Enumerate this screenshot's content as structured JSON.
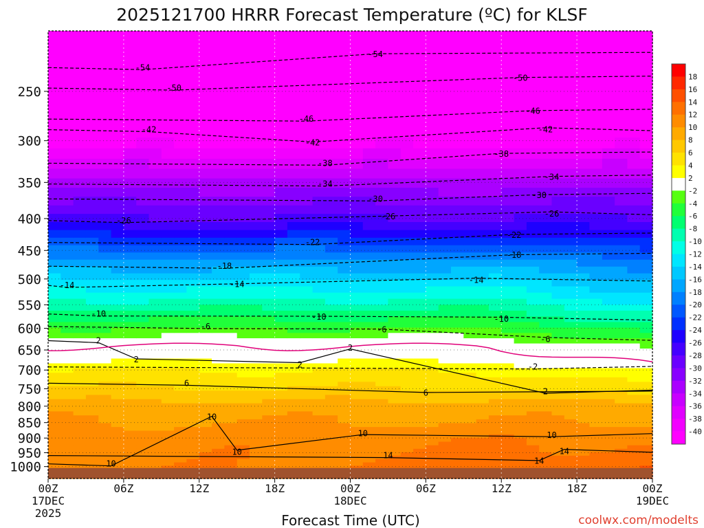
{
  "chart_data": {
    "type": "heatmap",
    "title": "2025121700 HRRR Forecast Temperature (ºC) for KLSF",
    "xlabel": "Forecast Time (UTC)",
    "ylabel": "",
    "credit": "coolwx.com/modelts",
    "x_range_hours": [
      0,
      48
    ],
    "x_ticks": [
      {
        "hour": 0,
        "line1": "00Z",
        "line2": "17DEC",
        "line3": "2025"
      },
      {
        "hour": 6,
        "line1": "06Z",
        "line2": "",
        "line3": ""
      },
      {
        "hour": 12,
        "line1": "12Z",
        "line2": "",
        "line3": ""
      },
      {
        "hour": 18,
        "line1": "18Z",
        "line2": "",
        "line3": ""
      },
      {
        "hour": 24,
        "line1": "00Z",
        "line2": "18DEC",
        "line3": ""
      },
      {
        "hour": 30,
        "line1": "06Z",
        "line2": "",
        "line3": ""
      },
      {
        "hour": 36,
        "line1": "12Z",
        "line2": "",
        "line3": ""
      },
      {
        "hour": 42,
        "line1": "18Z",
        "line2": "",
        "line3": ""
      },
      {
        "hour": 48,
        "line1": "00Z",
        "line2": "19DEC",
        "line3": ""
      }
    ],
    "y_scale": "log-pressure",
    "y_range_hpa": [
      1045,
      200
    ],
    "y_ticks_hpa": [
      250,
      300,
      350,
      400,
      450,
      500,
      550,
      600,
      650,
      700,
      750,
      800,
      850,
      900,
      950,
      1000
    ],
    "colorbar_labels": [
      "18",
      "16",
      "14",
      "12",
      "10",
      "8",
      "6",
      "4",
      "2",
      "-2",
      "-4",
      "-6",
      "-8",
      "-10",
      "-12",
      "-14",
      "-16",
      "-18",
      "-20",
      "-22",
      "-24",
      "-26",
      "-28",
      "-30",
      "-32",
      "-34",
      "-36",
      "-38",
      "-40"
    ],
    "color_bands": [
      {
        "min": -99,
        "max": -40,
        "color": "#ff00ff"
      },
      {
        "min": -40,
        "max": -38,
        "color": "#f200ff"
      },
      {
        "min": -38,
        "max": -36,
        "color": "#e000ff"
      },
      {
        "min": -36,
        "max": -34,
        "color": "#c800ff"
      },
      {
        "min": -34,
        "max": -32,
        "color": "#aa00ff"
      },
      {
        "min": -32,
        "max": -30,
        "color": "#8800ff"
      },
      {
        "min": -30,
        "max": -28,
        "color": "#6a00ff"
      },
      {
        "min": -28,
        "max": -26,
        "color": "#4400ff"
      },
      {
        "min": -26,
        "max": -24,
        "color": "#1e00ff"
      },
      {
        "min": -24,
        "max": -22,
        "color": "#0030ff"
      },
      {
        "min": -22,
        "max": -20,
        "color": "#0058ff"
      },
      {
        "min": -20,
        "max": -18,
        "color": "#0080ff"
      },
      {
        "min": -18,
        "max": -16,
        "color": "#00a6ff"
      },
      {
        "min": -16,
        "max": -14,
        "color": "#00c8ff"
      },
      {
        "min": -14,
        "max": -12,
        "color": "#00e6ff"
      },
      {
        "min": -12,
        "max": -10,
        "color": "#00ffe6"
      },
      {
        "min": -10,
        "max": -8,
        "color": "#00ffb0"
      },
      {
        "min": -8,
        "max": -6,
        "color": "#00ff70"
      },
      {
        "min": -6,
        "max": -4,
        "color": "#20ff3a"
      },
      {
        "min": -4,
        "max": -2,
        "color": "#56ff10"
      },
      {
        "min": -2,
        "max": 2,
        "color": "#ffffff"
      },
      {
        "min": 2,
        "max": 4,
        "color": "#ffff00"
      },
      {
        "min": 4,
        "max": 6,
        "color": "#ffe200"
      },
      {
        "min": 6,
        "max": 8,
        "color": "#ffc800"
      },
      {
        "min": 8,
        "max": 10,
        "color": "#ffaa00"
      },
      {
        "min": 10,
        "max": 12,
        "color": "#ff8c00"
      },
      {
        "min": 12,
        "max": 14,
        "color": "#ff7000"
      },
      {
        "min": 14,
        "max": 16,
        "color": "#ff5000"
      },
      {
        "min": 16,
        "max": 18,
        "color": "#ff2800"
      },
      {
        "min": 18,
        "max": 99,
        "color": "#ff0000"
      }
    ],
    "freezing_line_color": "#e0007a",
    "ground_color": "#a0522d",
    "temperature_profile_hour0": [
      {
        "p": 1000,
        "t": 11
      },
      {
        "p": 950,
        "t": 11
      },
      {
        "p": 900,
        "t": 11
      },
      {
        "p": 850,
        "t": 10
      },
      {
        "p": 800,
        "t": 9
      },
      {
        "p": 750,
        "t": 6
      },
      {
        "p": 700,
        "t": 4
      },
      {
        "p": 680,
        "t": 2
      },
      {
        "p": 640,
        "t": 0
      },
      {
        "p": 600,
        "t": -4
      },
      {
        "p": 550,
        "t": -9
      },
      {
        "p": 500,
        "t": -14
      },
      {
        "p": 450,
        "t": -20
      },
      {
        "p": 420,
        "t": -25
      },
      {
        "p": 400,
        "t": -28
      },
      {
        "p": 350,
        "t": -33
      },
      {
        "p": 300,
        "t": -41
      },
      {
        "p": 250,
        "t": -49
      },
      {
        "p": 220,
        "t": -54
      },
      {
        "p": 200,
        "t": -57
      }
    ],
    "contour_labels": [
      {
        "text": "-54",
        "hour": 7.5,
        "p": 229
      },
      {
        "text": "-54",
        "hour": 26,
        "p": 218
      },
      {
        "text": "-50",
        "hour": 10,
        "p": 247
      },
      {
        "text": "-50",
        "hour": 37.5,
        "p": 238
      },
      {
        "text": "-46",
        "hour": 20.5,
        "p": 277
      },
      {
        "text": "-46",
        "hour": 38.5,
        "p": 269
      },
      {
        "text": "-42",
        "hour": 8,
        "p": 288
      },
      {
        "text": "-42",
        "hour": 21,
        "p": 302
      },
      {
        "text": "-42",
        "hour": 39.5,
        "p": 288
      },
      {
        "text": "-38",
        "hour": 22,
        "p": 326
      },
      {
        "text": "-38",
        "hour": 36,
        "p": 315
      },
      {
        "text": "-34",
        "hour": 22,
        "p": 352
      },
      {
        "text": "-34",
        "hour": 40,
        "p": 343
      },
      {
        "text": "-30",
        "hour": 26,
        "p": 372
      },
      {
        "text": "-30",
        "hour": 39,
        "p": 367
      },
      {
        "text": "-26",
        "hour": 6,
        "p": 403
      },
      {
        "text": "-26",
        "hour": 27,
        "p": 397
      },
      {
        "text": "-26",
        "hour": 40,
        "p": 393
      },
      {
        "text": "-22",
        "hour": 21,
        "p": 437
      },
      {
        "text": "-22",
        "hour": 37,
        "p": 425
      },
      {
        "text": "-18",
        "hour": 14,
        "p": 477
      },
      {
        "text": "-18",
        "hour": 37,
        "p": 458
      },
      {
        "text": "-14",
        "hour": 1.5,
        "p": 512
      },
      {
        "text": "-14",
        "hour": 15,
        "p": 510
      },
      {
        "text": "-14",
        "hour": 34,
        "p": 502
      },
      {
        "text": "-10",
        "hour": 4,
        "p": 569
      },
      {
        "text": "-10",
        "hour": 21.5,
        "p": 575
      },
      {
        "text": "-10",
        "hour": 36,
        "p": 580
      },
      {
        "text": "-6",
        "hour": 12.5,
        "p": 596
      },
      {
        "text": "-6",
        "hour": 26.5,
        "p": 603
      },
      {
        "text": "-6",
        "hour": 39.5,
        "p": 625
      },
      {
        "text": "2",
        "hour": 4,
        "p": 628
      },
      {
        "text": "2",
        "hour": 24,
        "p": 645
      },
      {
        "text": "2",
        "hour": 7,
        "p": 673
      },
      {
        "text": "2",
        "hour": 20,
        "p": 686
      },
      {
        "text": "-2",
        "hour": 38.5,
        "p": 692
      },
      {
        "text": "2",
        "hour": 39.5,
        "p": 758
      },
      {
        "text": "6",
        "hour": 11,
        "p": 735
      },
      {
        "text": "6",
        "hour": 30,
        "p": 762
      },
      {
        "text": "10",
        "hour": 13,
        "p": 832
      },
      {
        "text": "10",
        "hour": 25,
        "p": 885
      },
      {
        "text": "10",
        "hour": 40,
        "p": 890
      },
      {
        "text": "10",
        "hour": 15,
        "p": 948
      },
      {
        "text": "10",
        "hour": 5,
        "p": 990
      },
      {
        "text": "14",
        "hour": 27,
        "p": 960
      },
      {
        "text": "14",
        "hour": 41,
        "p": 945
      },
      {
        "text": "14",
        "hour": 39,
        "p": 980
      }
    ]
  }
}
